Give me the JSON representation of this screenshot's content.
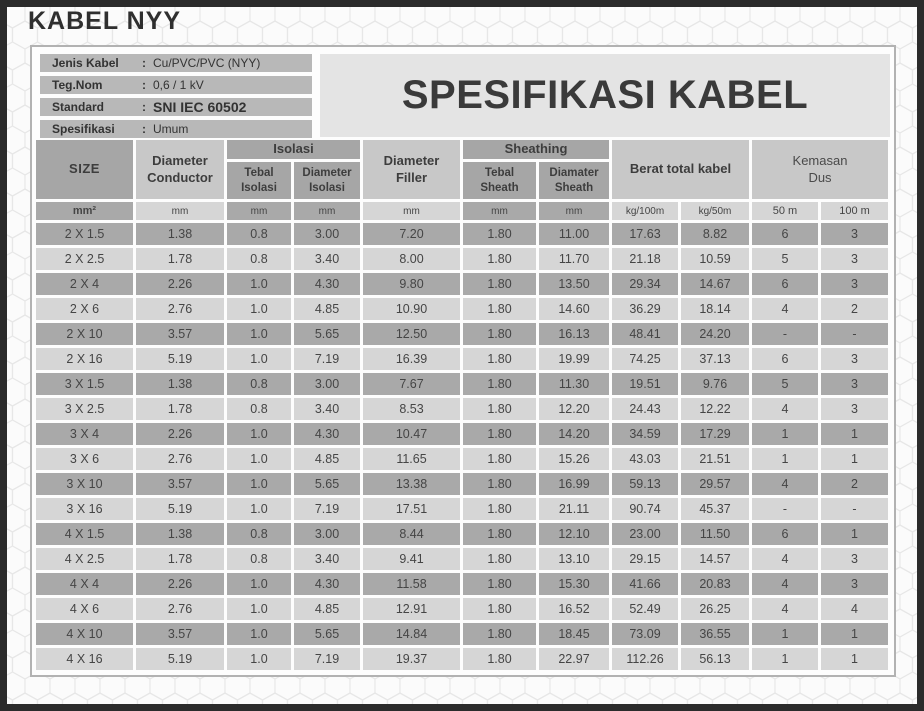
{
  "page": {
    "title": "KABEL NYY"
  },
  "spec_header": {
    "title": "SPESIFIKASI KABEL"
  },
  "info_box": {
    "rows": [
      {
        "label": "Jenis Kabel",
        "colon": ":",
        "value": "Cu/PVC/PVC (NYY)"
      },
      {
        "label": "Teg.Nom",
        "colon": ":",
        "value": "0,6 / 1 kV"
      },
      {
        "label": "Standard",
        "colon": ":",
        "value": "SNI IEC 60502"
      },
      {
        "label": "Spesifikasi",
        "colon": ":",
        "value": "Umum"
      }
    ]
  },
  "table": {
    "headers": {
      "size": "SIZE",
      "diameter_conductor": "Diameter\nConductor",
      "isolasi_group": "Isolasi",
      "tebal_isolasi": "Tebal\nIsolasi",
      "diameter_isolasi": "Diameter\nIsolasi",
      "diameter_filler": "Diameter\nFiller",
      "sheathing_group": "Sheathing",
      "tebal_sheath": "Tebal\nSheath",
      "diamater_sheath": "Diamater\nSheath",
      "berat_total_kabel": "Berat total kabel",
      "kemasan_dus": "Kemasan\nDus"
    },
    "units": [
      "mm²",
      "mm",
      "mm",
      "mm",
      "mm",
      "mm",
      "mm",
      "kg/100m",
      "kg/50m",
      "50 m",
      "100 m"
    ],
    "unit_shades": [
      "dark",
      "light",
      "dark",
      "dark",
      "light",
      "dark",
      "dark",
      "light",
      "light",
      "light",
      "light"
    ],
    "rows": [
      [
        "2 X 1.5",
        "1.38",
        "0.8",
        "3.00",
        "7.20",
        "1.80",
        "11.00",
        "17.63",
        "8.82",
        "6",
        "3"
      ],
      [
        "2 X 2.5",
        "1.78",
        "0.8",
        "3.40",
        "8.00",
        "1.80",
        "11.70",
        "21.18",
        "10.59",
        "5",
        "3"
      ],
      [
        "2 X 4",
        "2.26",
        "1.0",
        "4.30",
        "9.80",
        "1.80",
        "13.50",
        "29.34",
        "14.67",
        "6",
        "3"
      ],
      [
        "2 X 6",
        "2.76",
        "1.0",
        "4.85",
        "10.90",
        "1.80",
        "14.60",
        "36.29",
        "18.14",
        "4",
        "2"
      ],
      [
        "2 X 10",
        "3.57",
        "1.0",
        "5.65",
        "12.50",
        "1.80",
        "16.13",
        "48.41",
        "24.20",
        "-",
        "-"
      ],
      [
        "2 X 16",
        "5.19",
        "1.0",
        "7.19",
        "16.39",
        "1.80",
        "19.99",
        "74.25",
        "37.13",
        "6",
        "3"
      ],
      [
        "3 X 1.5",
        "1.38",
        "0.8",
        "3.00",
        "7.67",
        "1.80",
        "11.30",
        "19.51",
        "9.76",
        "5",
        "3"
      ],
      [
        "3 X 2.5",
        "1.78",
        "0.8",
        "3.40",
        "8.53",
        "1.80",
        "12.20",
        "24.43",
        "12.22",
        "4",
        "3"
      ],
      [
        "3 X 4",
        "2.26",
        "1.0",
        "4.30",
        "10.47",
        "1.80",
        "14.20",
        "34.59",
        "17.29",
        "1",
        "1"
      ],
      [
        "3 X 6",
        "2.76",
        "1.0",
        "4.85",
        "11.65",
        "1.80",
        "15.26",
        "43.03",
        "21.51",
        "1",
        "1"
      ],
      [
        "3 X 10",
        "3.57",
        "1.0",
        "5.65",
        "13.38",
        "1.80",
        "16.99",
        "59.13",
        "29.57",
        "4",
        "2"
      ],
      [
        "3 X 16",
        "5.19",
        "1.0",
        "7.19",
        "17.51",
        "1.80",
        "21.11",
        "90.74",
        "45.37",
        "-",
        "-"
      ],
      [
        "4 X 1.5",
        "1.38",
        "0.8",
        "3.00",
        "8.44",
        "1.80",
        "12.10",
        "23.00",
        "11.50",
        "6",
        "1"
      ],
      [
        "4 X 2.5",
        "1.78",
        "0.8",
        "3.40",
        "9.41",
        "1.80",
        "13.10",
        "29.15",
        "14.57",
        "4",
        "3"
      ],
      [
        "4 X 4",
        "2.26",
        "1.0",
        "4.30",
        "11.58",
        "1.80",
        "15.30",
        "41.66",
        "20.83",
        "4",
        "3"
      ],
      [
        "4 X 6",
        "2.76",
        "1.0",
        "4.85",
        "12.91",
        "1.80",
        "16.52",
        "52.49",
        "26.25",
        "4",
        "4"
      ],
      [
        "4 X 10",
        "3.57",
        "1.0",
        "5.65",
        "14.84",
        "1.80",
        "18.45",
        "73.09",
        "36.55",
        "1",
        "1"
      ],
      [
        "4 X 16",
        "5.19",
        "1.0",
        "7.19",
        "19.37",
        "1.80",
        "22.97",
        "112.26",
        "56.13",
        "1",
        "1"
      ]
    ]
  }
}
